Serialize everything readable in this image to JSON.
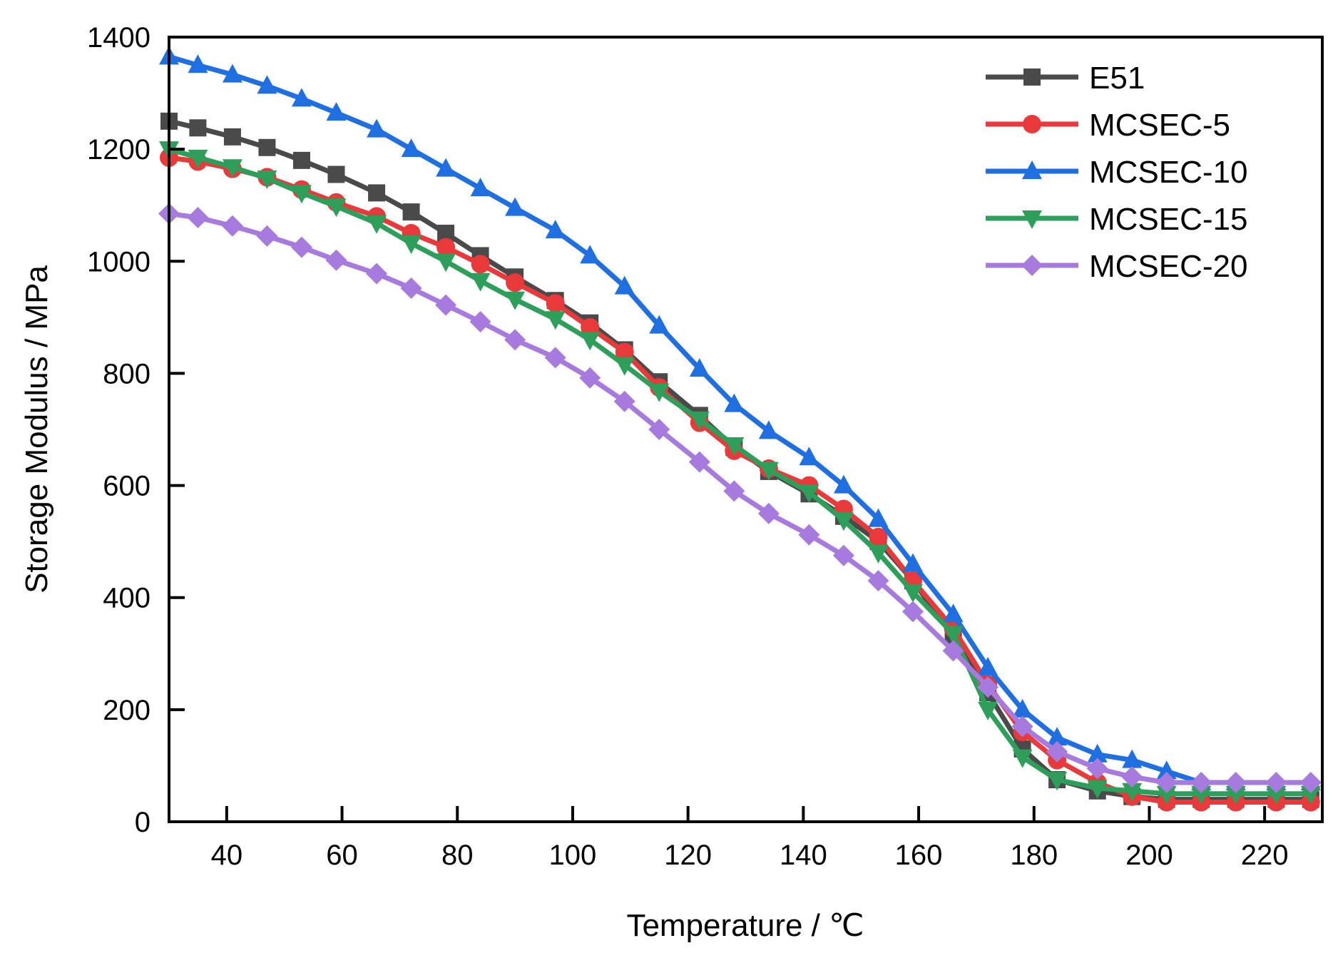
{
  "chart_data": {
    "type": "line",
    "title": "",
    "xlabel": "Temperature / ℃",
    "ylabel": "Storage Modulus / MPa",
    "xlim": [
      30,
      230
    ],
    "ylim": [
      0,
      1400
    ],
    "xticks": [
      40,
      60,
      80,
      100,
      120,
      140,
      160,
      180,
      200,
      220
    ],
    "yticks": [
      0,
      200,
      400,
      600,
      800,
      1000,
      1200,
      1400
    ],
    "grid": false,
    "legend_position": "top-right",
    "x": [
      30,
      35,
      41,
      47,
      53,
      59,
      66,
      72,
      78,
      84,
      90,
      97,
      103,
      109,
      115,
      122,
      128,
      134,
      141,
      147,
      153,
      159,
      166,
      172,
      178,
      184,
      191,
      197,
      203,
      209,
      215,
      222,
      228
    ],
    "series": [
      {
        "name": "E51",
        "color": "#4a4a4a",
        "marker": "square",
        "values": [
          1250,
          1238,
          1222,
          1203,
          1180,
          1155,
          1122,
          1088,
          1050,
          1010,
          972,
          930,
          890,
          842,
          785,
          725,
          668,
          625,
          585,
          545,
          500,
          430,
          330,
          230,
          130,
          75,
          55,
          45,
          40,
          40,
          40,
          40,
          40
        ]
      },
      {
        "name": "MCSEC-5",
        "color": "#e83a3a",
        "marker": "circle",
        "values": [
          1185,
          1178,
          1165,
          1150,
          1128,
          1105,
          1080,
          1050,
          1025,
          995,
          962,
          925,
          882,
          838,
          775,
          712,
          662,
          630,
          600,
          558,
          508,
          430,
          345,
          245,
          160,
          110,
          70,
          45,
          35,
          35,
          35,
          35,
          35
        ]
      },
      {
        "name": "MCSEC-10",
        "color": "#1f6fe0",
        "marker": "triangle-up",
        "values": [
          1365,
          1350,
          1333,
          1313,
          1290,
          1265,
          1235,
          1200,
          1165,
          1130,
          1095,
          1055,
          1010,
          955,
          885,
          808,
          745,
          697,
          650,
          600,
          540,
          460,
          370,
          275,
          200,
          150,
          120,
          110,
          90,
          70,
          70,
          70,
          70
        ]
      },
      {
        "name": "MCSEC-15",
        "color": "#2e9e5b",
        "marker": "triangle-down",
        "values": [
          1200,
          1185,
          1168,
          1148,
          1122,
          1098,
          1068,
          1032,
          1000,
          965,
          932,
          897,
          860,
          815,
          768,
          718,
          672,
          628,
          588,
          538,
          480,
          410,
          335,
          200,
          115,
          75,
          60,
          55,
          50,
          50,
          50,
          50,
          50
        ]
      },
      {
        "name": "MCSEC-20",
        "color": "#a77bdd",
        "marker": "diamond",
        "values": [
          1085,
          1078,
          1063,
          1045,
          1025,
          1002,
          978,
          952,
          922,
          892,
          860,
          828,
          792,
          750,
          700,
          642,
          590,
          550,
          512,
          475,
          430,
          375,
          305,
          240,
          170,
          125,
          95,
          80,
          70,
          70,
          70,
          70,
          70
        ]
      }
    ]
  }
}
